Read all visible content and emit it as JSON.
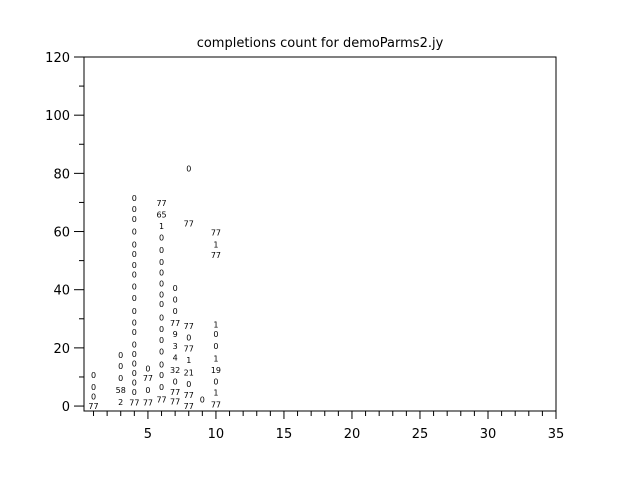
{
  "chart_data": {
    "type": "scatter",
    "marker": "text-label",
    "title": "completions count for demoParms2.jy",
    "xlabel": "",
    "ylabel": "",
    "xlim": [
      0.3,
      35
    ],
    "ylim": [
      -1.7,
      120
    ],
    "xticks": [
      5,
      10,
      15,
      20,
      25,
      30,
      35
    ],
    "yticks": [
      0,
      20,
      40,
      60,
      80,
      100,
      120
    ],
    "x_minor_step": 1,
    "y_minor_step": 10,
    "grid": false,
    "color": "#000000",
    "labels": [
      {
        "x": 1,
        "y": 0,
        "text": "77"
      },
      {
        "x": 1,
        "y": 2.5,
        "text": "0"
      },
      {
        "x": 1,
        "y": 6.5,
        "text": "0"
      },
      {
        "x": 1,
        "y": 10.7,
        "text": "0"
      },
      {
        "x": 3,
        "y": 1.4,
        "text": "2"
      },
      {
        "x": 3,
        "y": 5.5,
        "text": "58"
      },
      {
        "x": 3,
        "y": 9.6,
        "text": "0"
      },
      {
        "x": 3,
        "y": 13.8,
        "text": "0"
      },
      {
        "x": 3,
        "y": 17.5,
        "text": "0"
      },
      {
        "x": 4,
        "y": 1.3,
        "text": "77"
      },
      {
        "x": 4,
        "y": 4.9,
        "text": "0"
      },
      {
        "x": 4,
        "y": 7.5,
        "text": "0"
      },
      {
        "x": 4,
        "y": 9.5,
        "text": "0"
      },
      {
        "x": 4,
        "y": 12.7,
        "text": "0"
      },
      {
        "x": 4,
        "y": 16.6,
        "text": "0"
      },
      {
        "x": 4,
        "y": 20.7,
        "text": "0"
      },
      {
        "x": 4,
        "y": 25.4,
        "text": "0"
      },
      {
        "x": 4,
        "y": 28.8,
        "text": "0"
      },
      {
        "x": 4,
        "y": 32.7,
        "text": "0"
      },
      {
        "x": 4,
        "y": 37.1,
        "text": "0"
      },
      {
        "x": 4,
        "y": 41.1,
        "text": "0"
      },
      {
        "x": 4,
        "y": 45.3,
        "text": "0"
      },
      {
        "x": 4,
        "y": 48.1,
        "text": "0"
      },
      {
        "x": 4,
        "y": 52.2,
        "text": "0"
      },
      {
        "x": 4,
        "y": 55.6,
        "text": "0"
      },
      {
        "x": 4,
        "y": 60,
        "text": "0"
      },
      {
        "x": 4,
        "y": 64.3,
        "text": "0"
      },
      {
        "x": 4,
        "y": 67.7,
        "text": "0"
      },
      {
        "x": 4,
        "y": 71.6,
        "text": "0"
      },
      {
        "x": 5,
        "y": 1.3,
        "text": "77"
      },
      {
        "x": 5,
        "y": 5.5,
        "text": "0"
      },
      {
        "x": 5,
        "y": 9.6,
        "text": "77"
      },
      {
        "x": 5,
        "y": 12.4,
        "text": "0"
      },
      {
        "x": 6,
        "y": 2.3,
        "text": "77"
      },
      {
        "x": 6,
        "y": 6.6,
        "text": "0"
      },
      {
        "x": 6,
        "y": 10.7,
        "text": "0"
      },
      {
        "x": 6,
        "y": 14.3,
        "text": "0"
      },
      {
        "x": 6,
        "y": 18.7,
        "text": "0"
      },
      {
        "x": 6,
        "y": 22.7,
        "text": "0"
      },
      {
        "x": 6,
        "y": 26.5,
        "text": "0"
      },
      {
        "x": 6,
        "y": 30.5,
        "text": "0"
      },
      {
        "x": 6,
        "y": 35,
        "text": "0"
      },
      {
        "x": 6,
        "y": 38.2,
        "text": "0"
      },
      {
        "x": 6,
        "y": 42.2,
        "text": "0"
      },
      {
        "x": 6,
        "y": 46,
        "text": "0"
      },
      {
        "x": 6,
        "y": 49.6,
        "text": "0"
      },
      {
        "x": 6,
        "y": 53.6,
        "text": "0"
      },
      {
        "x": 6,
        "y": 57.9,
        "text": "0"
      },
      {
        "x": 6,
        "y": 61.9,
        "text": "1"
      },
      {
        "x": 6,
        "y": 65.9,
        "text": "65"
      },
      {
        "x": 6,
        "y": 69.8,
        "text": "77"
      },
      {
        "x": 7,
        "y": 1.5,
        "text": "77"
      },
      {
        "x": 7,
        "y": 4.7,
        "text": "77"
      },
      {
        "x": 7,
        "y": 8.4,
        "text": "0"
      },
      {
        "x": 7,
        "y": 12.4,
        "text": "32"
      },
      {
        "x": 7,
        "y": 16.7,
        "text": "4"
      },
      {
        "x": 7,
        "y": 20.6,
        "text": "3"
      },
      {
        "x": 7,
        "y": 24.8,
        "text": "9"
      },
      {
        "x": 7,
        "y": 28.6,
        "text": "77"
      },
      {
        "x": 7,
        "y": 32.7,
        "text": "0"
      },
      {
        "x": 7,
        "y": 36.7,
        "text": "0"
      },
      {
        "x": 7,
        "y": 40.5,
        "text": "0"
      },
      {
        "x": 8,
        "y": 0,
        "text": "77"
      },
      {
        "x": 8,
        "y": 3.8,
        "text": "77"
      },
      {
        "x": 8,
        "y": 7.5,
        "text": "0"
      },
      {
        "x": 8,
        "y": 11.6,
        "text": "21"
      },
      {
        "x": 8,
        "y": 15.8,
        "text": "1"
      },
      {
        "x": 8,
        "y": 19.8,
        "text": "77"
      },
      {
        "x": 8,
        "y": 23.6,
        "text": "0"
      },
      {
        "x": 8,
        "y": 27.5,
        "text": "77"
      },
      {
        "x": 8,
        "y": 62.8,
        "text": "77"
      },
      {
        "x": 8,
        "y": 81.7,
        "text": "0"
      },
      {
        "x": 9,
        "y": 2.3,
        "text": "0"
      },
      {
        "x": 10,
        "y": 0.6,
        "text": "77"
      },
      {
        "x": 10,
        "y": 4.7,
        "text": "1"
      },
      {
        "x": 10,
        "y": 8.4,
        "text": "0"
      },
      {
        "x": 10,
        "y": 12.4,
        "text": "19"
      },
      {
        "x": 10,
        "y": 16.4,
        "text": "1"
      },
      {
        "x": 10,
        "y": 20.6,
        "text": "0"
      },
      {
        "x": 10,
        "y": 24.7,
        "text": "0"
      },
      {
        "x": 10,
        "y": 27.5,
        "text": "1"
      },
      {
        "x": 10,
        "y": 51.9,
        "text": "77"
      },
      {
        "x": 10,
        "y": 55.6,
        "text": "1"
      },
      {
        "x": 10,
        "y": 59.7,
        "text": "77"
      }
    ]
  }
}
